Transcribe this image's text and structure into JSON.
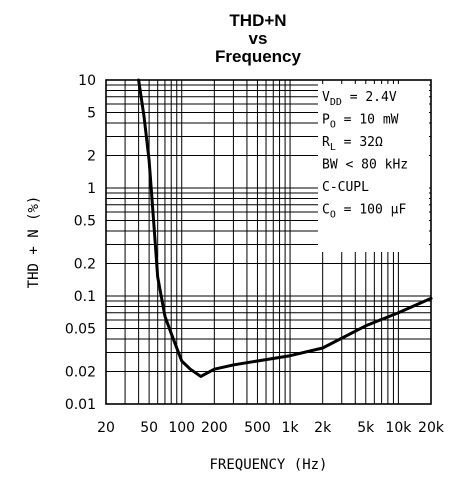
{
  "chart_data": {
    "type": "line",
    "title_lines": [
      "THD+N",
      "vs",
      "Frequency"
    ],
    "xlabel": "FREQUENCY (Hz)",
    "ylabel": "THD + N (%)",
    "x_scale": "log",
    "y_scale": "log",
    "xlim": [
      20,
      20000
    ],
    "ylim": [
      0.01,
      10
    ],
    "grid": true,
    "x_ticks": [
      {
        "value": 20,
        "label": "20"
      },
      {
        "value": 50,
        "label": "50"
      },
      {
        "value": 100,
        "label": "100"
      },
      {
        "value": 200,
        "label": "200"
      },
      {
        "value": 500,
        "label": "500"
      },
      {
        "value": 1000,
        "label": "1k"
      },
      {
        "value": 2000,
        "label": "2k"
      },
      {
        "value": 5000,
        "label": "5k"
      },
      {
        "value": 10000,
        "label": "10k"
      },
      {
        "value": 20000,
        "label": "20k"
      }
    ],
    "y_ticks": [
      {
        "value": 10,
        "label": "10"
      },
      {
        "value": 5,
        "label": "5"
      },
      {
        "value": 2,
        "label": "2"
      },
      {
        "value": 1,
        "label": "1"
      },
      {
        "value": 0.5,
        "label": "0.5"
      },
      {
        "value": 0.2,
        "label": "0.2"
      },
      {
        "value": 0.1,
        "label": "0.1"
      },
      {
        "value": 0.05,
        "label": "0.05"
      },
      {
        "value": 0.02,
        "label": "0.02"
      },
      {
        "value": 0.01,
        "label": "0.01"
      }
    ],
    "annotations": {
      "position": "top-right",
      "lines": [
        {
          "main": "V",
          "sub": "DD",
          "rest": " = 2.4V"
        },
        {
          "main": "P",
          "sub": "O",
          "rest": " = 10 mW"
        },
        {
          "main": "R",
          "sub": "L",
          "rest": " = 32Ω"
        },
        {
          "main": "BW < 80 kHz",
          "sub": "",
          "rest": ""
        },
        {
          "main": "C-CUPL",
          "sub": "",
          "rest": ""
        },
        {
          "main": "C",
          "sub": "O",
          "rest": " = 100 μF"
        }
      ]
    },
    "series": [
      {
        "x": [
          40,
          45,
          50,
          55,
          60,
          70,
          80,
          100,
          120,
          150,
          200,
          300,
          500,
          1000,
          2000,
          5000,
          10000,
          20000
        ],
        "y": [
          10,
          4.5,
          1.8,
          0.5,
          0.15,
          0.065,
          0.045,
          0.025,
          0.021,
          0.018,
          0.021,
          0.023,
          0.025,
          0.028,
          0.033,
          0.053,
          0.07,
          0.095
        ]
      }
    ]
  }
}
